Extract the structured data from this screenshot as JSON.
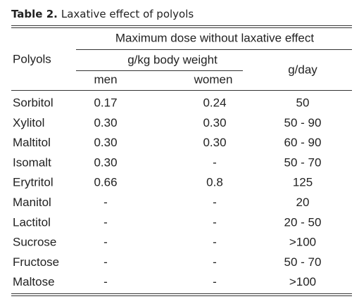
{
  "title": {
    "label": "Table 2.",
    "text": "Laxative effect of polyols"
  },
  "table": {
    "header": {
      "row_label": "Polyols",
      "group": "Maximum dose without laxative effect",
      "subgroup": "g/kg body weight",
      "columns": [
        "men",
        "women",
        "g/day"
      ]
    },
    "rows": [
      [
        "Sorbitol",
        "0.17",
        "0.24",
        "50"
      ],
      [
        "Xylitol",
        "0.30",
        "0.30",
        "50 - 90"
      ],
      [
        "Maltitol",
        "0.30",
        "0.30",
        "60 - 90"
      ],
      [
        "Isomalt",
        "0.30",
        "-",
        "50 - 70"
      ],
      [
        "Erytritol",
        "0.66",
        "0.8",
        "125"
      ],
      [
        "Manitol",
        "-",
        "-",
        "20"
      ],
      [
        "Lactitol",
        "-",
        "-",
        "20 - 50"
      ],
      [
        "Sucrose",
        "-",
        "-",
        ">100"
      ],
      [
        "Fructose",
        "-",
        "-",
        "50 - 70"
      ],
      [
        "Maltose",
        "-",
        "-",
        ">100"
      ]
    ]
  }
}
